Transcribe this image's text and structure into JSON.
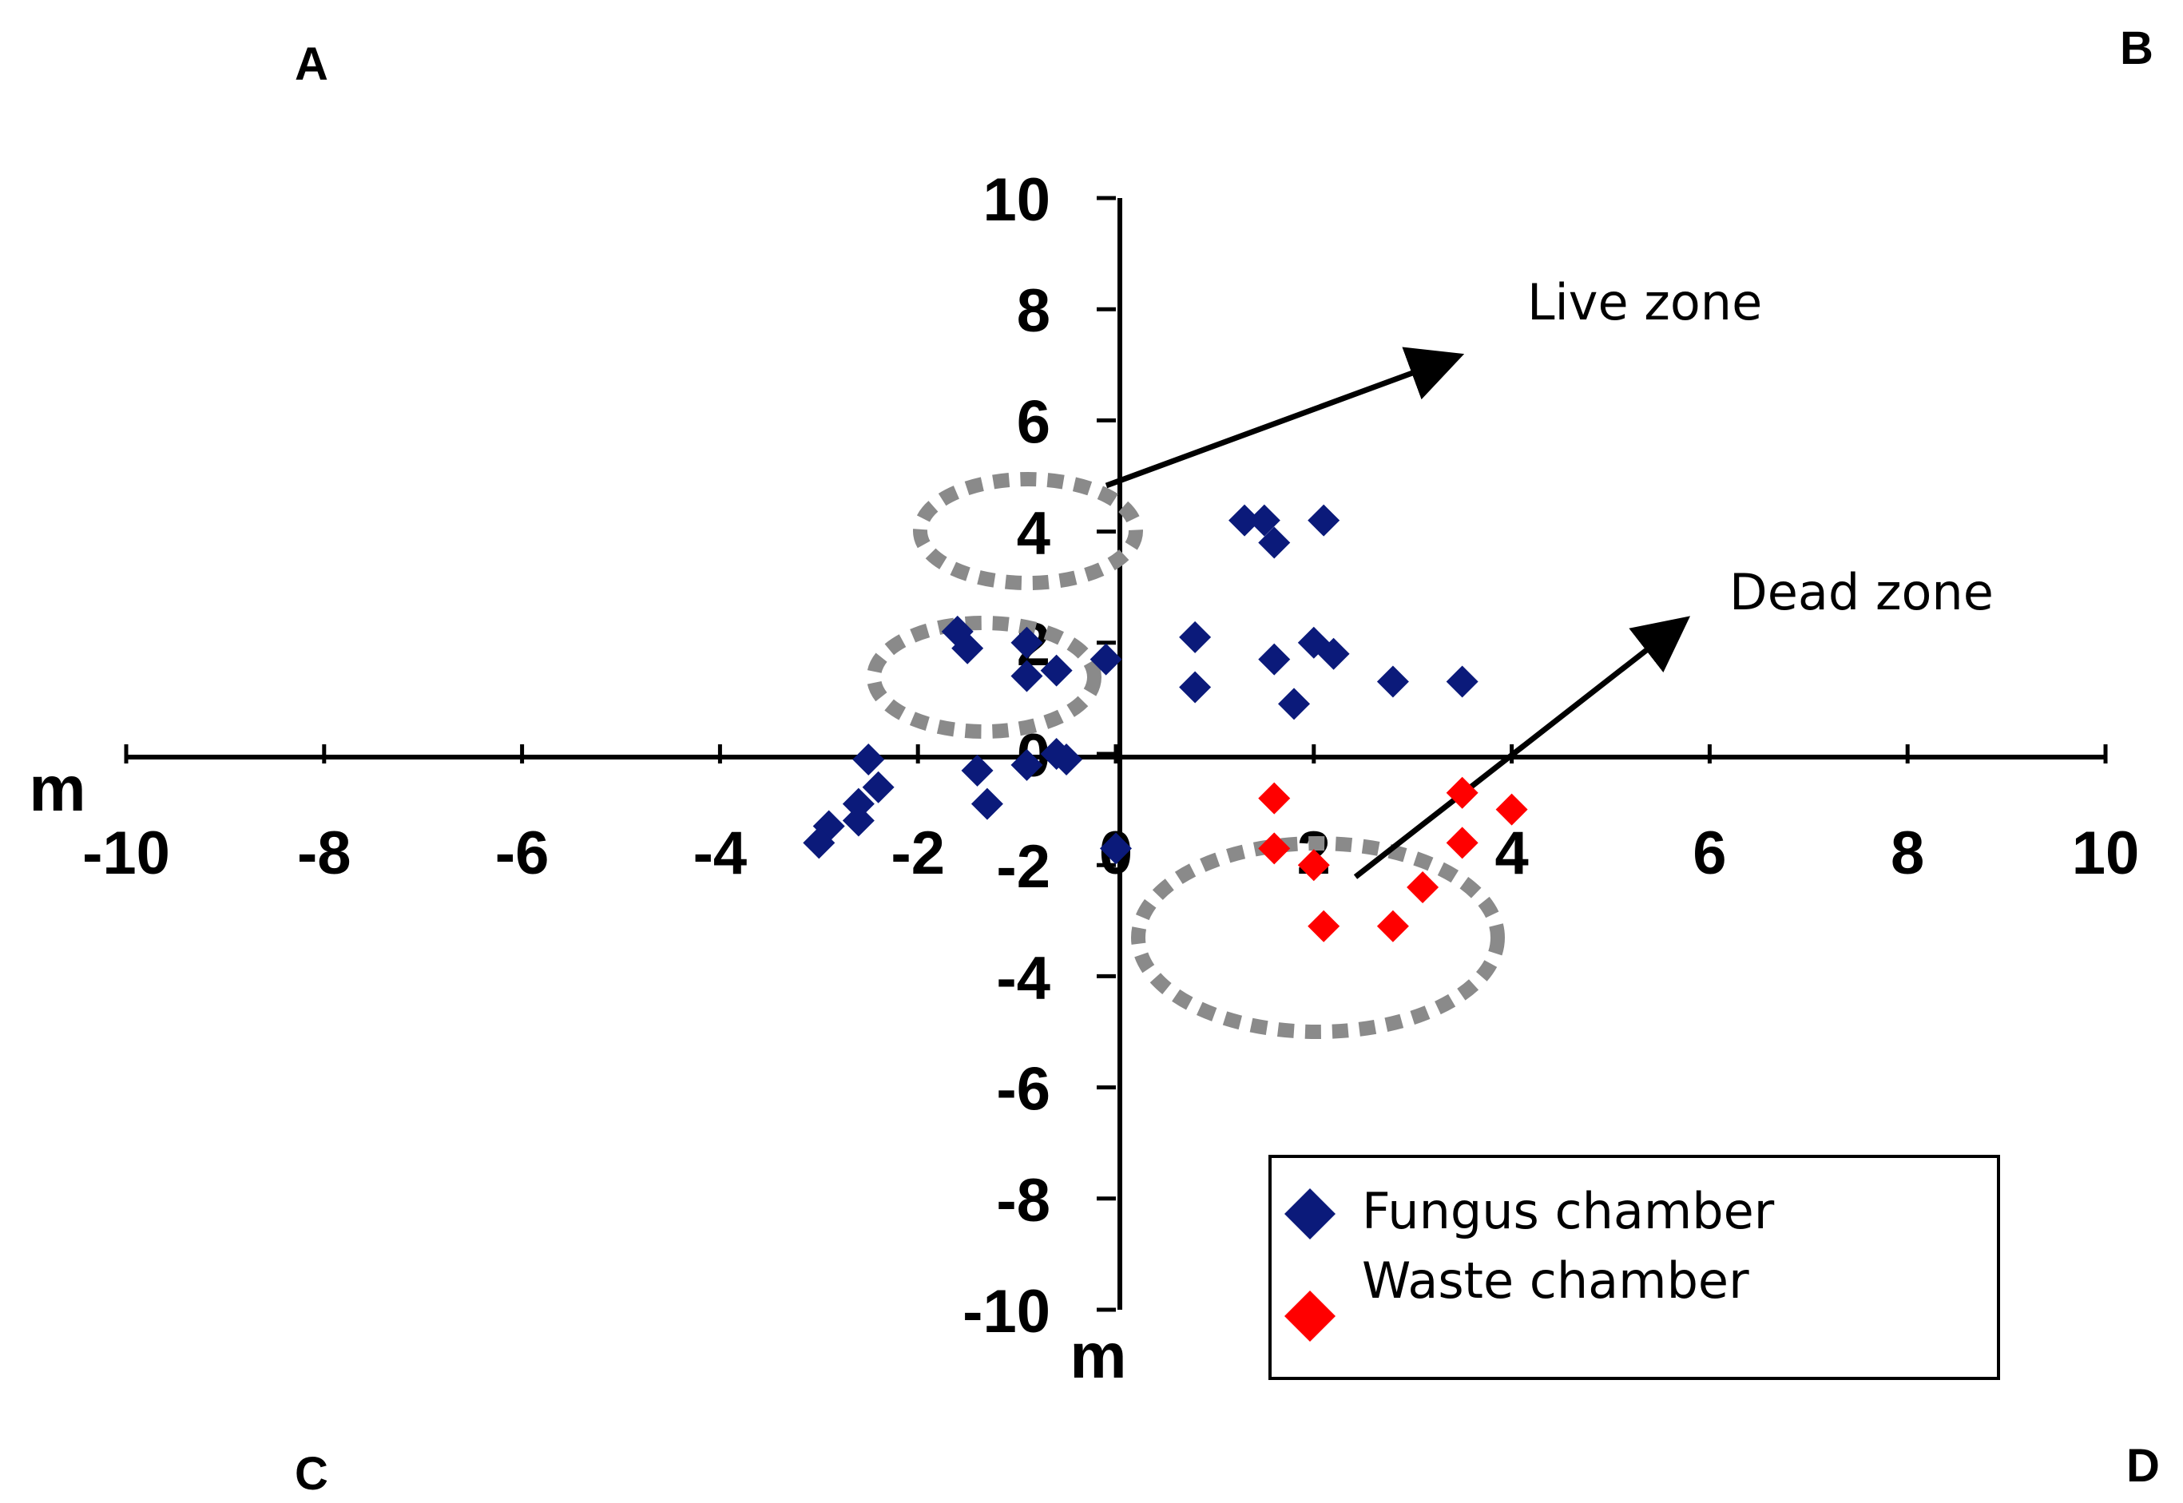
{
  "chart_data": {
    "type": "scatter",
    "corner_labels": {
      "top_left": "A",
      "top_right": "B",
      "bottom_left": "C",
      "bottom_right": "D"
    },
    "xlabel": "m",
    "ylabel": "m",
    "xlim": [
      -10,
      10
    ],
    "ylim": [
      -10,
      10
    ],
    "x_ticks": [
      "-10",
      "-8",
      "-6",
      "-4",
      "-2",
      "0",
      "2",
      "4",
      "6",
      "8",
      "10"
    ],
    "y_ticks": [
      "10",
      "8",
      "6",
      "4",
      "2",
      "0",
      "-2",
      "-4",
      "-6",
      "-8",
      "-10"
    ],
    "grid": false,
    "legend_position": "bottom-right",
    "series": [
      {
        "name": "Fungus chamber",
        "color": "#0b1a7a",
        "marker": "diamond",
        "points": [
          [
            1.3,
            4.2
          ],
          [
            1.5,
            4.2
          ],
          [
            1.6,
            3.8
          ],
          [
            2.1,
            4.2
          ],
          [
            -1.6,
            2.2
          ],
          [
            -1.5,
            1.9
          ],
          [
            -0.9,
            2.0
          ],
          [
            -0.9,
            1.4
          ],
          [
            -0.6,
            1.5
          ],
          [
            -0.1,
            1.7
          ],
          [
            0.8,
            2.1
          ],
          [
            0.8,
            1.2
          ],
          [
            1.6,
            1.7
          ],
          [
            1.8,
            0.9
          ],
          [
            2.0,
            2.0
          ],
          [
            2.2,
            1.8
          ],
          [
            2.8,
            1.3
          ],
          [
            3.5,
            1.3
          ],
          [
            -2.5,
            -0.1
          ],
          [
            -2.4,
            -0.6
          ],
          [
            -2.6,
            -0.9
          ],
          [
            -2.6,
            -1.2
          ],
          [
            -2.9,
            -1.3
          ],
          [
            -3.0,
            -1.6
          ],
          [
            -1.4,
            -0.3
          ],
          [
            -1.3,
            -0.9
          ],
          [
            -0.9,
            -0.2
          ],
          [
            -0.6,
            0.0
          ],
          [
            -0.5,
            -0.1
          ],
          [
            0.0,
            -1.7
          ]
        ]
      },
      {
        "name": "Waste chamber",
        "color": "#ff0000",
        "marker": "diamond",
        "points": [
          [
            1.6,
            -0.8
          ],
          [
            1.6,
            -1.7
          ],
          [
            2.0,
            -2.0
          ],
          [
            2.1,
            -3.1
          ],
          [
            2.8,
            -3.1
          ],
          [
            3.1,
            -2.4
          ],
          [
            3.5,
            -0.7
          ],
          [
            3.5,
            -1.6
          ],
          [
            4.0,
            -1.0
          ]
        ]
      }
    ],
    "zones": [
      {
        "label": "Live zone"
      },
      {
        "label": "Dead zone"
      }
    ]
  }
}
